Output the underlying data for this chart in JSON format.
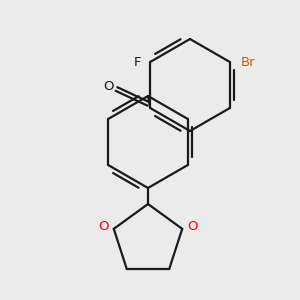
{
  "background_color": "#ebebeb",
  "bond_color": "#1a1a1a",
  "oxygen_color": "#ff0000",
  "bromine_color": "#b8630a",
  "lw": 1.6,
  "dbo": 0.012,
  "figsize": [
    3.0,
    3.0
  ],
  "dpi": 100,
  "xlim": [
    0,
    300
  ],
  "ylim": [
    0,
    300
  ]
}
